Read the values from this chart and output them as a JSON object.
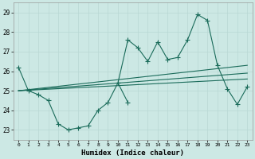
{
  "xlabel": "Humidex (Indice chaleur)",
  "bg_color": "#cce8e4",
  "grid_color": "#b8d8d4",
  "line_color": "#1a6b5a",
  "x": [
    0,
    1,
    2,
    3,
    4,
    5,
    6,
    7,
    8,
    9,
    10,
    11,
    12,
    13,
    14,
    15,
    16,
    17,
    18,
    19,
    20,
    21,
    22,
    23
  ],
  "series1": [
    26.2,
    25.0,
    24.8,
    24.5,
    23.3,
    23.0,
    23.1,
    23.2,
    24.0,
    24.4,
    25.4,
    24.4,
    null,
    null,
    null,
    null,
    null,
    null,
    null,
    null,
    null,
    null,
    null,
    null
  ],
  "series2": [
    null,
    null,
    null,
    null,
    null,
    null,
    null,
    null,
    null,
    null,
    25.4,
    27.6,
    27.2,
    26.5,
    27.5,
    26.6,
    26.7,
    27.6,
    28.9,
    28.6,
    26.3,
    25.1,
    24.3,
    25.2
  ],
  "series3_x": [
    0,
    23
  ],
  "series3_y": [
    25.0,
    26.3
  ],
  "series4_x": [
    0,
    23
  ],
  "series4_y": [
    25.0,
    25.9
  ],
  "series5_x": [
    0,
    23
  ],
  "series5_y": [
    25.0,
    25.6
  ],
  "ylim": [
    22.5,
    29.5
  ],
  "xlim": [
    -0.5,
    23.5
  ],
  "yticks": [
    23,
    24,
    25,
    26,
    27,
    28,
    29
  ],
  "xticks": [
    0,
    1,
    2,
    3,
    4,
    5,
    6,
    7,
    8,
    9,
    10,
    11,
    12,
    13,
    14,
    15,
    16,
    17,
    18,
    19,
    20,
    21,
    22,
    23
  ]
}
